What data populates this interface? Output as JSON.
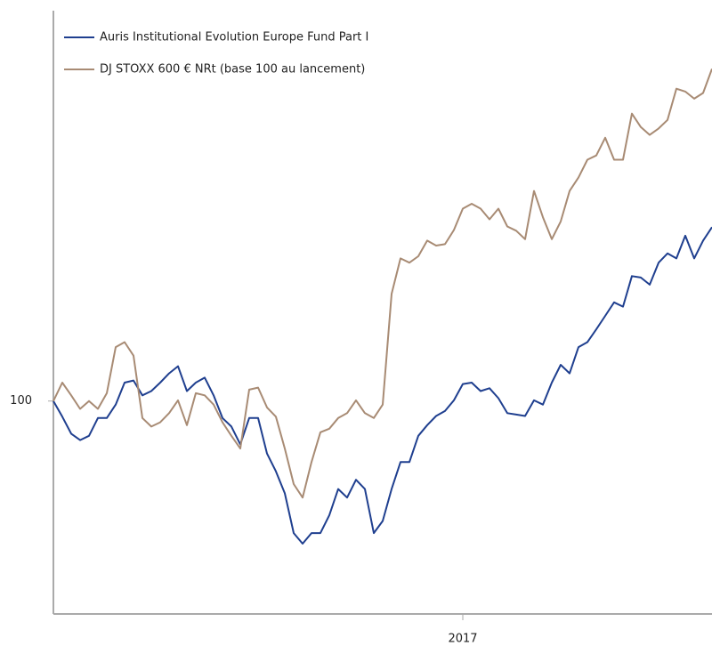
{
  "chart_data": {
    "type": "line",
    "legend": "top-left",
    "xlim": [
      0,
      74
    ],
    "xticks": [
      {
        "value": 46,
        "label": "2017"
      }
    ],
    "ylim": [
      70,
      155
    ],
    "yticks": [
      100
    ],
    "series": [
      {
        "name": "Auris Institutional Evolution Europe Fund Part I",
        "color": "#1f3f8f",
        "values": [
          100,
          97.8,
          95.4,
          94.5,
          95.1,
          97.6,
          97.6,
          99.5,
          102.6,
          102.9,
          100.8,
          101.4,
          102.6,
          103.9,
          104.9,
          101.4,
          102.6,
          103.3,
          100.8,
          97.6,
          96.4,
          93.9,
          97.6,
          97.6,
          92.6,
          90.1,
          87,
          81.4,
          79.9,
          81.4,
          81.4,
          83.9,
          87.6,
          86.4,
          88.9,
          87.6,
          81.4,
          83.1,
          87.6,
          91.4,
          91.4,
          95.1,
          96.6,
          97.9,
          98.6,
          100.1,
          102.4,
          102.6,
          101.4,
          101.8,
          100.4,
          98.3,
          98.1,
          97.9,
          100.1,
          99.5,
          102.6,
          105.1,
          103.9,
          107.6,
          108.3,
          110.1,
          112,
          113.9,
          113.3,
          117.6,
          117.4,
          116.4,
          119.5,
          120.8,
          120.1,
          123.3,
          120.1,
          122.6,
          124.5
        ]
      },
      {
        "name": "DJ STOXX 600 € NRt (base 100 au lancement)",
        "color": "#a88b74",
        "values": [
          100,
          102.6,
          100.8,
          98.9,
          100,
          98.9,
          101.1,
          107.6,
          108.3,
          106.4,
          97.6,
          96.4,
          97,
          98.3,
          100.1,
          96.6,
          101.1,
          100.8,
          99.5,
          97,
          95.1,
          93.3,
          101.6,
          101.9,
          99.1,
          97.8,
          93.3,
          88.3,
          86.4,
          91.4,
          95.6,
          96.1,
          97.6,
          98.3,
          100.1,
          98.3,
          97.6,
          99.5,
          115.1,
          120.1,
          119.5,
          120.4,
          122.6,
          121.9,
          122.1,
          124.1,
          127.1,
          127.8,
          127.1,
          125.6,
          127.1,
          124.6,
          124,
          122.8,
          129.6,
          125.9,
          122.8,
          125.3,
          129.6,
          131.5,
          134,
          134.6,
          137.1,
          134,
          134,
          140.5,
          138.6,
          137.5,
          138.4,
          139.6,
          144,
          143.6,
          142.6,
          143.4,
          146.8
        ]
      }
    ]
  }
}
